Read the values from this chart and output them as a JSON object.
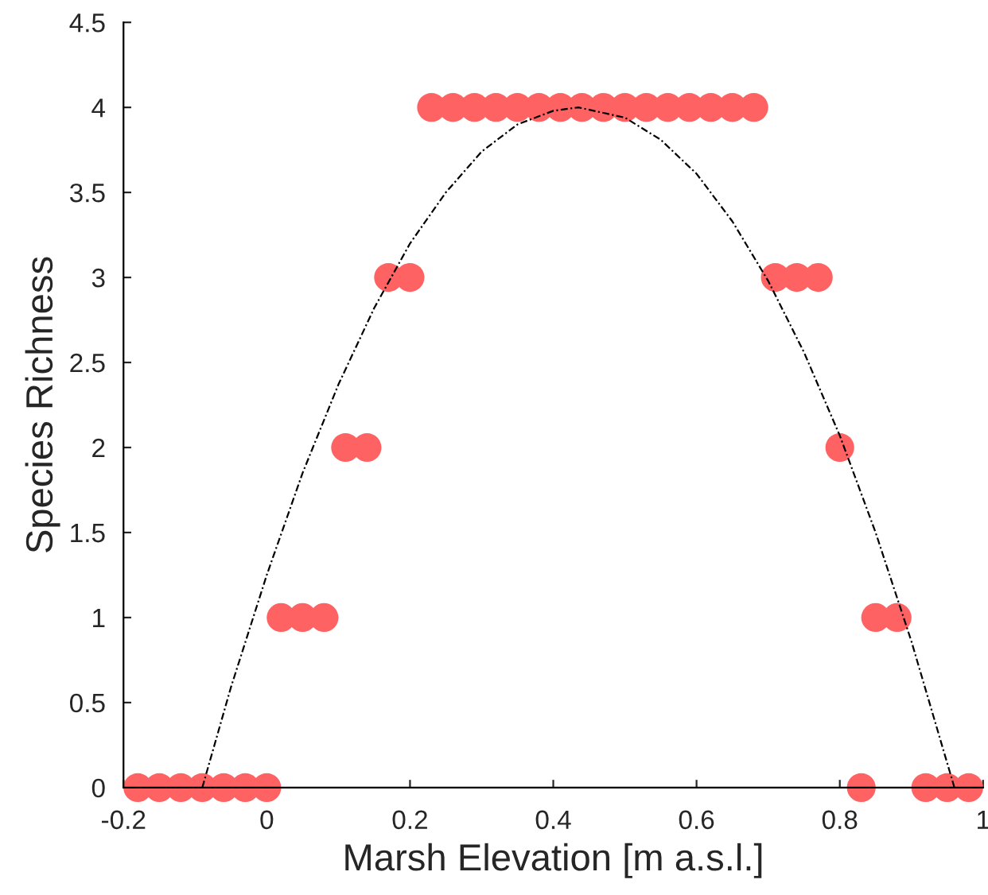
{
  "chart_data": {
    "type": "scatter",
    "xlabel": "Marsh Elevation [m a.s.l.]",
    "ylabel": "Species Richness",
    "xlim": [
      -0.2,
      1
    ],
    "ylim": [
      0,
      4.5
    ],
    "xticks": [
      {
        "value": -0.2,
        "label": "-0.2"
      },
      0,
      0.2,
      0.4,
      0.6,
      0.8,
      1
    ],
    "yticks": [
      0,
      0.5,
      1,
      1.5,
      2,
      2.5,
      3,
      3.5,
      4,
      4.5
    ],
    "grid": false,
    "legend": false,
    "series": [
      {
        "color": "#ff6262",
        "marker": "circle",
        "x": [
          -0.18,
          -0.15,
          -0.12,
          -0.09,
          -0.06,
          -0.03,
          0.0,
          0.02,
          0.05,
          0.08,
          0.11,
          0.14,
          0.17,
          0.2,
          0.23,
          0.26,
          0.29,
          0.32,
          0.35,
          0.38,
          0.41,
          0.44,
          0.47,
          0.5,
          0.53,
          0.56,
          0.59,
          0.62,
          0.65,
          0.68,
          0.71,
          0.74,
          0.77,
          0.8,
          0.83,
          0.85,
          0.88,
          0.92,
          0.95,
          0.98
        ],
        "values": [
          0,
          0,
          0,
          0,
          0,
          0,
          0,
          1,
          1,
          1,
          2,
          2,
          3,
          3,
          4,
          4,
          4,
          4,
          4,
          4,
          4,
          4,
          4,
          4,
          4,
          4,
          4,
          4,
          4,
          4,
          3,
          3,
          3,
          2,
          0,
          1,
          1,
          0,
          0,
          0
        ]
      },
      {
        "type": "line",
        "color": "#000000",
        "line_style": "dashed",
        "marker": "none",
        "x": [
          -0.09,
          -0.05,
          0,
          0.05,
          0.1,
          0.15,
          0.2,
          0.25,
          0.3,
          0.35,
          0.4,
          0.435,
          0.5,
          0.55,
          0.6,
          0.65,
          0.7,
          0.75,
          0.8,
          0.85,
          0.9,
          0.96
        ],
        "values": [
          0,
          0.59,
          1.25,
          1.85,
          2.37,
          2.82,
          3.2,
          3.5,
          3.74,
          3.9,
          3.98,
          4.0,
          3.94,
          3.81,
          3.61,
          3.33,
          2.98,
          2.56,
          2.07,
          1.5,
          0.86,
          0
        ]
      }
    ]
  }
}
